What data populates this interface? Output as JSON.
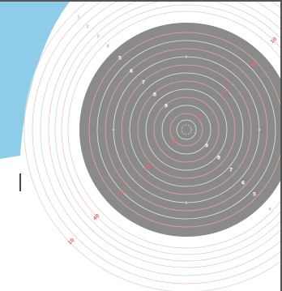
{
  "target": {
    "colors": {
      "background": "#ffffff",
      "blue_shape": "#8dcdea",
      "black_zone": "#8a8a8a",
      "ring_line_light": "#dcdcdc",
      "ring_line_on_black": "#e6e6e6",
      "red_ring": "#f0a3a3",
      "red_label": "#e06b6b"
    },
    "outer_scoring_labels": [
      "1",
      "2",
      "3",
      "4"
    ],
    "inner_scoring_labels": [
      "5",
      "6",
      "7",
      "8",
      "9"
    ],
    "red_ring_labels": [
      "10",
      "20",
      "30",
      "40",
      "50",
      "60"
    ]
  }
}
